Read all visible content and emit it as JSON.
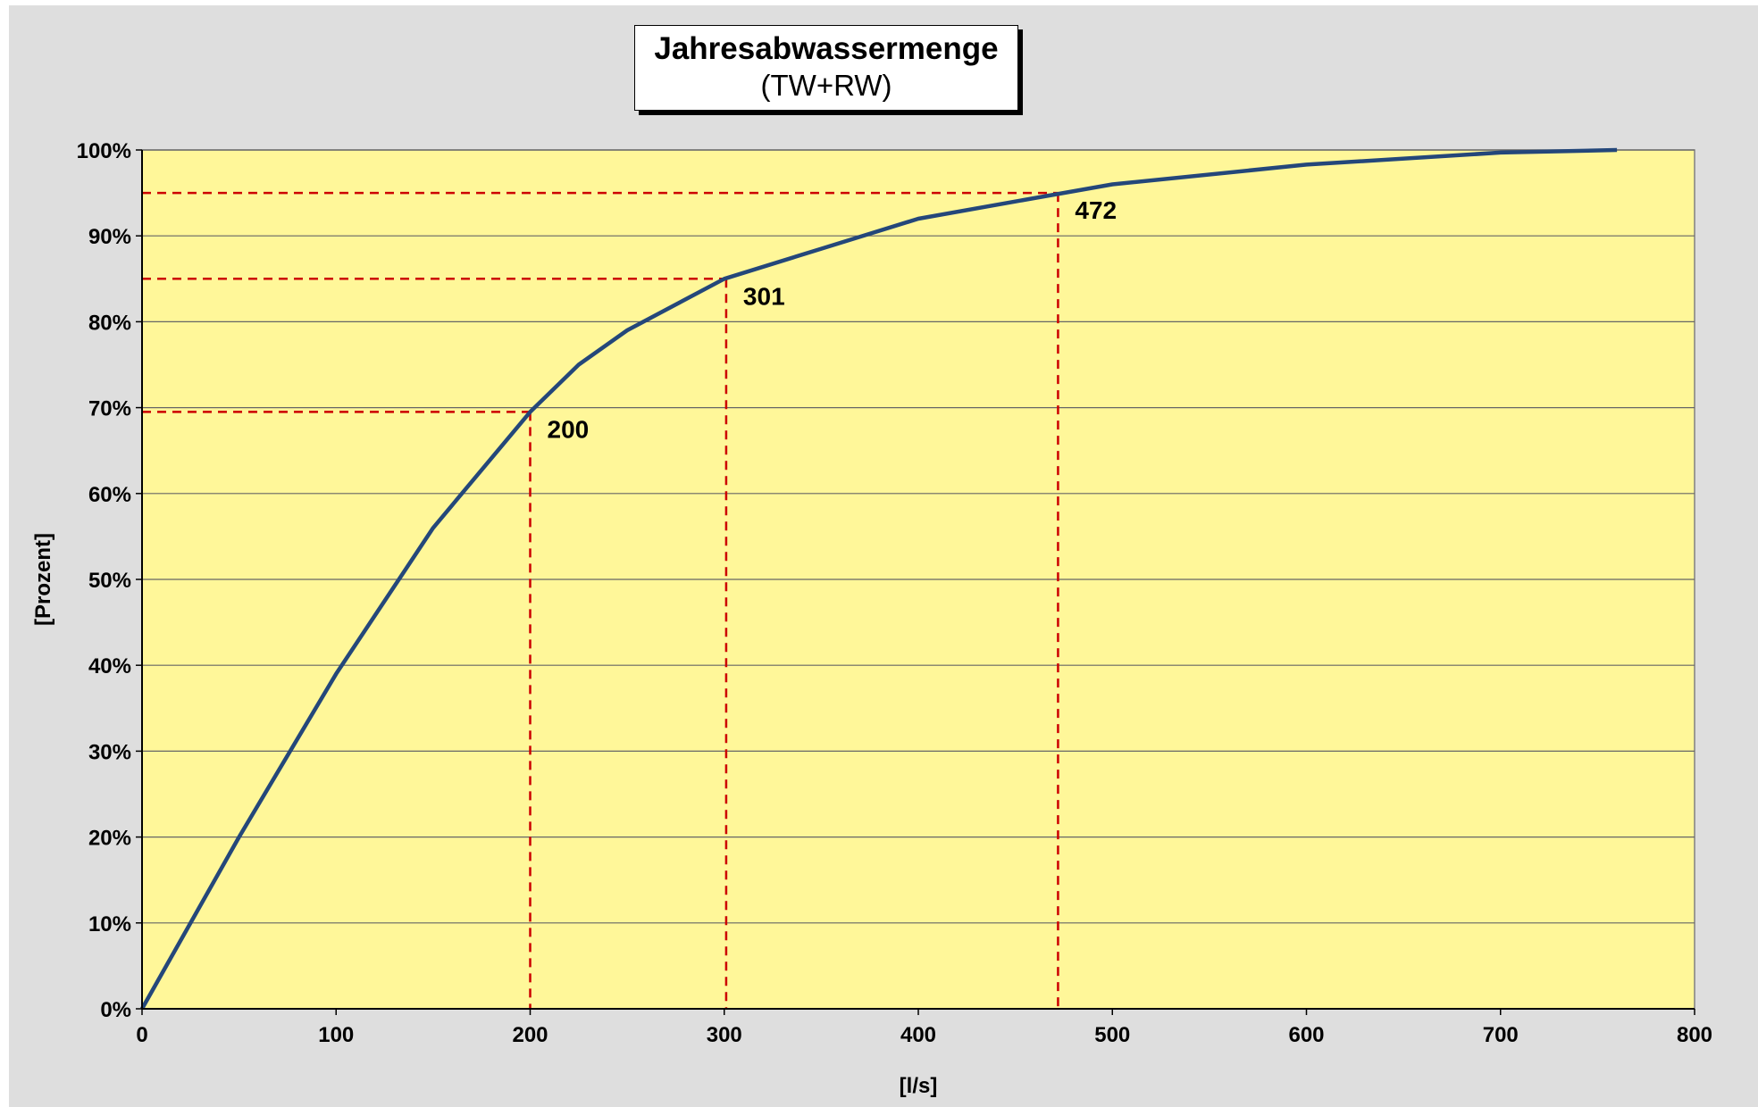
{
  "chart_data": {
    "type": "line",
    "title": "Jahresabwassermenge",
    "subtitle": "(TW+RW)",
    "xlabel": "[l/s]",
    "ylabel": "[Prozent]",
    "xlim": [
      0,
      800
    ],
    "ylim": [
      0,
      100
    ],
    "x_ticks": [
      "0",
      "100",
      "200",
      "300",
      "400",
      "500",
      "600",
      "700",
      "800"
    ],
    "y_ticks": [
      "0%",
      "10%",
      "20%",
      "30%",
      "40%",
      "50%",
      "60%",
      "70%",
      "80%",
      "90%",
      "100%"
    ],
    "grid": "horizontal",
    "legend": "none",
    "series": [
      {
        "x": [
          0,
          50,
          100,
          150,
          200,
          225,
          250,
          300,
          350,
          400,
          450,
          500,
          600,
          700,
          760
        ],
        "y": [
          0,
          20,
          39,
          56,
          69.5,
          75,
          79,
          85,
          88.5,
          92,
          94,
          96,
          98.3,
          99.7,
          100
        ]
      }
    ],
    "annotations": [
      {
        "label": "200",
        "x": 200,
        "y": 69.5
      },
      {
        "label": "301",
        "x": 301,
        "y": 85
      },
      {
        "label": "472",
        "x": 472,
        "y": 95
      }
    ],
    "colors": {
      "background": "#dedede",
      "plot": "#fff799",
      "line": "#24477a",
      "reference": "#cc0000",
      "grid": "#666666"
    }
  }
}
